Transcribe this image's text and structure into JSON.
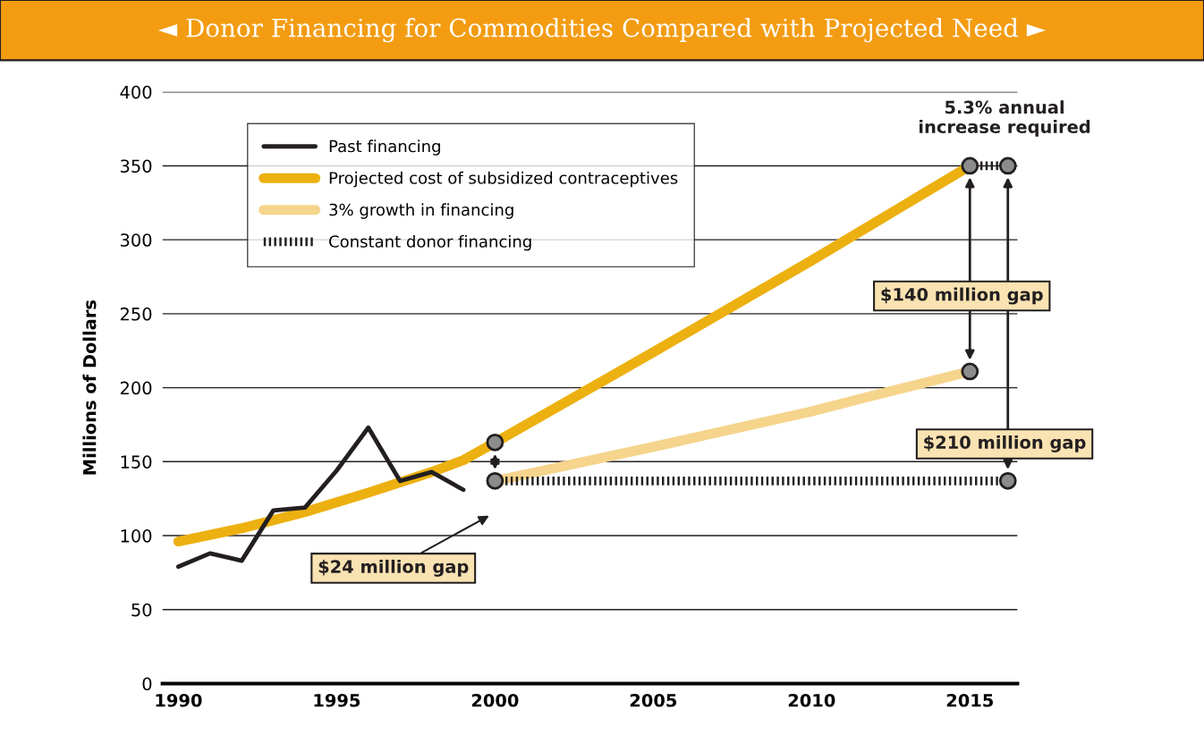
{
  "chart_data": {
    "type": "line",
    "title": "◄ Donor Financing for Commodities Compared with Projected Need ►",
    "ylabel": "Millions of Dollars",
    "xlim": [
      1989.5,
      2016.5
    ],
    "xticks": [
      1990,
      1995,
      2000,
      2005,
      2010,
      2015
    ],
    "ylim": [
      0,
      400
    ],
    "yticks": [
      0,
      50,
      100,
      150,
      200,
      250,
      300,
      350,
      400
    ],
    "grid": "y",
    "legend": "top left",
    "series": [
      {
        "name": "Past financing",
        "color": "#231f20",
        "x": [
          1990,
          1991,
          1992,
          1993,
          1994,
          1995,
          1996,
          1997,
          1998,
          1999
        ],
        "values": [
          79,
          88,
          83,
          117,
          119,
          144,
          173,
          137,
          143,
          131
        ]
      },
      {
        "name": "Projected cost of subsidized contraceptives",
        "color": "#ecb010",
        "x": [
          1990,
          1992,
          1994,
          1996,
          1998,
          1999,
          2000,
          2005,
          2010,
          2015
        ],
        "values": [
          96,
          105,
          116,
          129,
          143,
          151,
          163,
          224,
          286,
          350
        ]
      },
      {
        "name": "3% growth in financing",
        "color": "#f5d48c",
        "x": [
          2000,
          2005,
          2010,
          2012,
          2015
        ],
        "values": [
          137,
          160,
          184,
          195,
          211
        ]
      },
      {
        "name": "Constant donor financing",
        "color": "#231f20",
        "line_style": "dotted",
        "x": [
          2000,
          2016.2
        ],
        "values": [
          137,
          137
        ]
      },
      {
        "color": "#231f20",
        "line_style": "dotted",
        "x": [
          2015,
          2016.2
        ],
        "values": [
          350,
          350
        ]
      },
      {
        "type": "scatter",
        "color": "#8c8c8c",
        "marker": "circle",
        "x": [
          2000,
          2000,
          2015,
          2015,
          2016.2,
          2016.2
        ],
        "values": [
          163,
          137,
          350,
          211,
          350,
          137
        ]
      }
    ],
    "annotations": [
      "$24 million gap",
      "$140 million gap",
      "$210 million gap",
      "5.3% annual\nincrease required"
    ]
  }
}
